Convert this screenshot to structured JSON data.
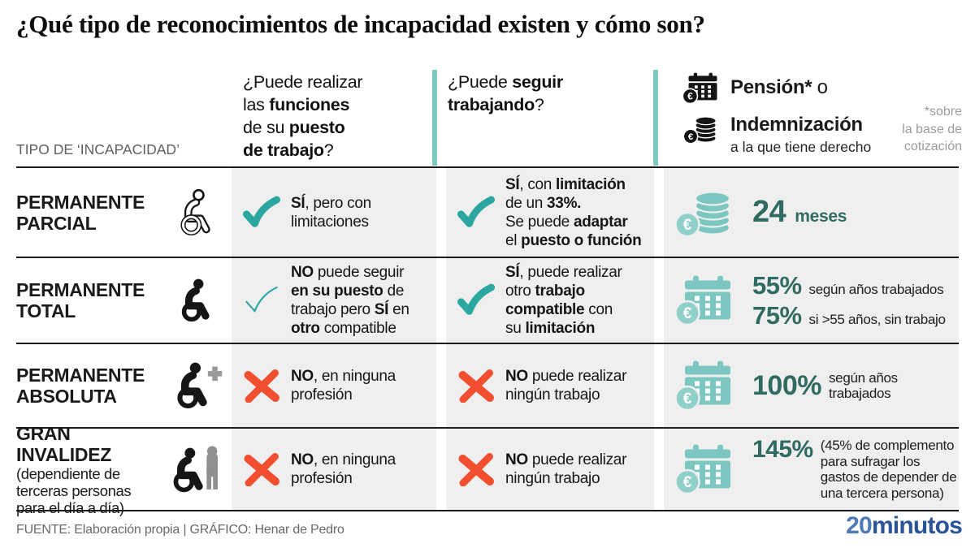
{
  "title": "¿Qué tipo de reconocimientos de incapacidad existen y cómo son?",
  "header": {
    "col1_label": "TIPO DE ‘INCAPACIDAD’",
    "q1_segments": [
      {
        "t": "¿Puede realizar\nlas "
      },
      {
        "t": "funciones",
        "b": true
      },
      {
        "t": "\nde su "
      },
      {
        "t": "puesto",
        "b": true
      },
      {
        "t": "\n"
      },
      {
        "t": "de trabajo",
        "b": true
      },
      {
        "t": "?"
      }
    ],
    "q2_segments": [
      {
        "t": "¿Puede "
      },
      {
        "t": "seguir",
        "b": true
      },
      {
        "t": "\n"
      },
      {
        "t": "trabajando",
        "b": true
      },
      {
        "t": "?"
      }
    ],
    "pension_line1_segments": [
      {
        "t": "Pensión*",
        "b": true
      },
      {
        "t": " o"
      }
    ],
    "pension_line2_title": "Indemnización",
    "pension_line2_sub": "a la que tiene derecho",
    "footnote": "*sobre\nla base de\ncotización"
  },
  "icons": {
    "wheelchair-outline-icon": "person in wheelchair, line style",
    "wheelchair-solid-icon": "person in wheelchair, solid",
    "wheelchair-plus-icon": "person in wheelchair with gray plus sign",
    "wheelchair-assist-icon": "person in wheelchair with gray helper person",
    "check-icon": "teal checkmark",
    "check-outline-icon": "teal outlined checkmark",
    "cross-icon": "red brush X",
    "calendar-euro-icon": "calendar with euro coin",
    "coins-euro-icon": "coin stack with euro coin"
  },
  "rows": [
    {
      "name": "PERMANENTE\nPARCIAL",
      "type_icon": "wheelchair-outline-icon",
      "can_do_job_mark": "check-icon",
      "can_do_job_segments": [
        {
          "t": "SÍ",
          "b": true
        },
        {
          "t": ", pero con\nlimitaciones"
        }
      ],
      "can_keep_working_mark": "check-icon",
      "can_keep_working_segments": [
        {
          "t": "SÍ",
          "b": true
        },
        {
          "t": ", con "
        },
        {
          "t": "limitación",
          "b": true
        },
        {
          "t": "\nde un "
        },
        {
          "t": "33%.",
          "b": true
        },
        {
          "t": "\nSe puede "
        },
        {
          "t": "adaptar",
          "b": true
        },
        {
          "t": "\nel "
        },
        {
          "t": "puesto o función",
          "b": true
        }
      ],
      "pension_icon": "coins-euro-icon",
      "pension_lines": [
        {
          "value": "24",
          "text": "meses"
        }
      ]
    },
    {
      "name": "PERMANENTE\nTOTAL",
      "type_icon": "wheelchair-solid-icon",
      "can_do_job_mark": "check-outline-icon",
      "can_do_job_segments": [
        {
          "t": "NO",
          "b": true
        },
        {
          "t": " puede seguir\n"
        },
        {
          "t": "en su puesto",
          "b": true
        },
        {
          "t": " de\ntrabajo pero "
        },
        {
          "t": "SÍ",
          "b": true
        },
        {
          "t": " en\n"
        },
        {
          "t": "otro",
          "b": true
        },
        {
          "t": " compatible"
        }
      ],
      "can_keep_working_mark": "check-icon",
      "can_keep_working_segments": [
        {
          "t": "SÍ",
          "b": true
        },
        {
          "t": ", puede realizar\notro "
        },
        {
          "t": "trabajo",
          "b": true
        },
        {
          "t": "\n"
        },
        {
          "t": "compatible",
          "b": true
        },
        {
          "t": " con\nsu "
        },
        {
          "t": "limitación",
          "b": true
        }
      ],
      "pension_icon": "calendar-euro-icon",
      "pension_lines": [
        {
          "value": "55%",
          "text": "según años trabajados"
        },
        {
          "value": "75%",
          "text": "si >55 años, sin trabajo"
        }
      ]
    },
    {
      "name": "PERMANENTE\nABSOLUTA",
      "type_icon": "wheelchair-plus-icon",
      "can_do_job_mark": "cross-icon",
      "can_do_job_segments": [
        {
          "t": "NO",
          "b": true
        },
        {
          "t": ", en ninguna\nprofesión"
        }
      ],
      "can_keep_working_mark": "cross-icon",
      "can_keep_working_segments": [
        {
          "t": "NO",
          "b": true
        },
        {
          "t": " puede realizar\nningún trabajo"
        }
      ],
      "pension_icon": "calendar-euro-icon",
      "pension_lines": [
        {
          "value": "100%",
          "text": "según años\ntrabajados"
        }
      ]
    },
    {
      "name": "GRAN INVALIDEZ",
      "name_sub": "(dependiente de\nterceras personas\npara el día a día)",
      "type_icon": "wheelchair-assist-icon",
      "can_do_job_mark": "cross-icon",
      "can_do_job_segments": [
        {
          "t": "NO",
          "b": true
        },
        {
          "t": ", en ninguna\nprofesión"
        }
      ],
      "can_keep_working_mark": "cross-icon",
      "can_keep_working_segments": [
        {
          "t": "NO",
          "b": true
        },
        {
          "t": " puede realizar\nningún trabajo"
        }
      ],
      "pension_icon": "calendar-euro-icon",
      "pension_lines": [
        {
          "value": "145%",
          "text": "(45% de complemento\npara sufragar los\ngastos de depender de\nuna tercera persona)"
        }
      ]
    }
  ],
  "footer": {
    "source": "FUENTE: Elaboración propia  |  GRÁFICO: Henar de Pedro",
    "logo_part1": "20",
    "logo_part2": "minutos"
  },
  "colors": {
    "teal_accent": "#2aa7a0",
    "teal_bar": "#7cc9c4",
    "teal_light_icon": "#7cc7c1",
    "teal_dark_value": "#2f6b61",
    "red_cross": "#f14f30",
    "cell_bg": "#efefef",
    "gray_icon": "#8f8f8f",
    "logo_blue": "#4e7bb7",
    "logo_navy": "#2a5497"
  }
}
